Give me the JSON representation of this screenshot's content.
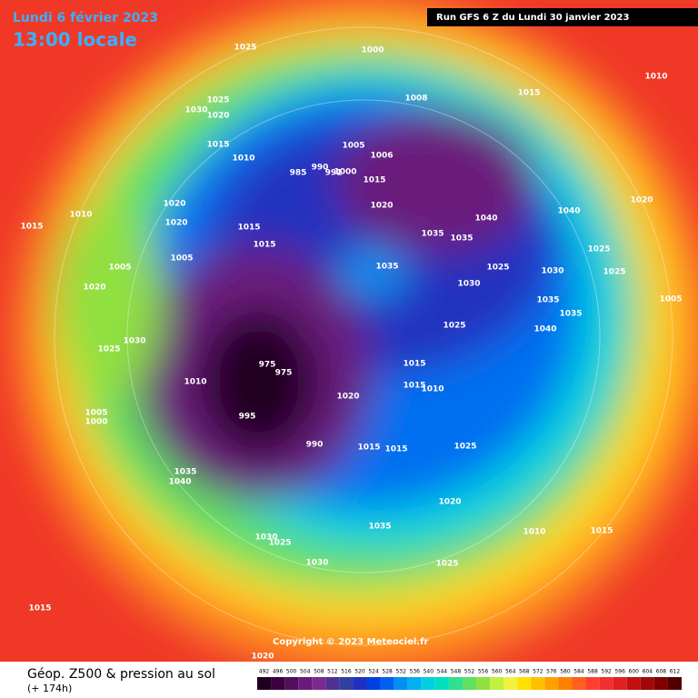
{
  "header": {
    "date": "Lundi 6 février 2023",
    "time": "13:00 locale",
    "run": "Run GFS 6 Z du Lundi 30 janvier 2023"
  },
  "copyright": "Copyright © 2023 Meteociel.fr",
  "footer": {
    "title": "Géop. Z500 & pression au sol",
    "subtitle": "(+ 174h)"
  },
  "legend": {
    "labels": [
      492,
      496,
      500,
      504,
      508,
      512,
      516,
      520,
      524,
      528,
      532,
      536,
      540,
      544,
      548,
      552,
      556,
      560,
      564,
      568,
      572,
      576,
      580,
      584,
      588,
      592,
      596,
      600,
      604,
      608,
      612
    ],
    "colors": [
      "#200020",
      "#3a0040",
      "#50105a",
      "#6a1a7a",
      "#7a2a90",
      "#503090",
      "#3040a0",
      "#2030c0",
      "#0040e0",
      "#0060f0",
      "#0090f0",
      "#00b0f0",
      "#00d0e0",
      "#00e0c0",
      "#30e090",
      "#60e060",
      "#90e040",
      "#c0f040",
      "#f0f040",
      "#ffe000",
      "#ffc000",
      "#ffa000",
      "#ff8000",
      "#ff6020",
      "#ff4030",
      "#f03030",
      "#e02020",
      "#c01010",
      "#a00808",
      "#800000",
      "#500000"
    ]
  },
  "isobar_labels": [
    1025,
    1000,
    1010,
    1008,
    1015,
    1025,
    1030,
    1020,
    1015,
    1010,
    1005,
    1006,
    985,
    990,
    991,
    1000,
    1015,
    1020,
    1040,
    1040,
    1020,
    1015,
    1010,
    1020,
    1020,
    1015,
    1015,
    1035,
    1035,
    1025,
    1025,
    1005,
    1005,
    1035,
    1025,
    1030,
    1020,
    1030,
    1035,
    1035,
    1005,
    1025,
    1040,
    1030,
    1025,
    975,
    975,
    1015,
    1010,
    1020,
    1015,
    1010,
    995,
    1005,
    1000,
    990,
    1015,
    1015,
    1025,
    1035,
    1040,
    1020,
    1035,
    1010,
    1015,
    1030,
    1025,
    1025,
    1030,
    1015,
    1020
  ]
}
